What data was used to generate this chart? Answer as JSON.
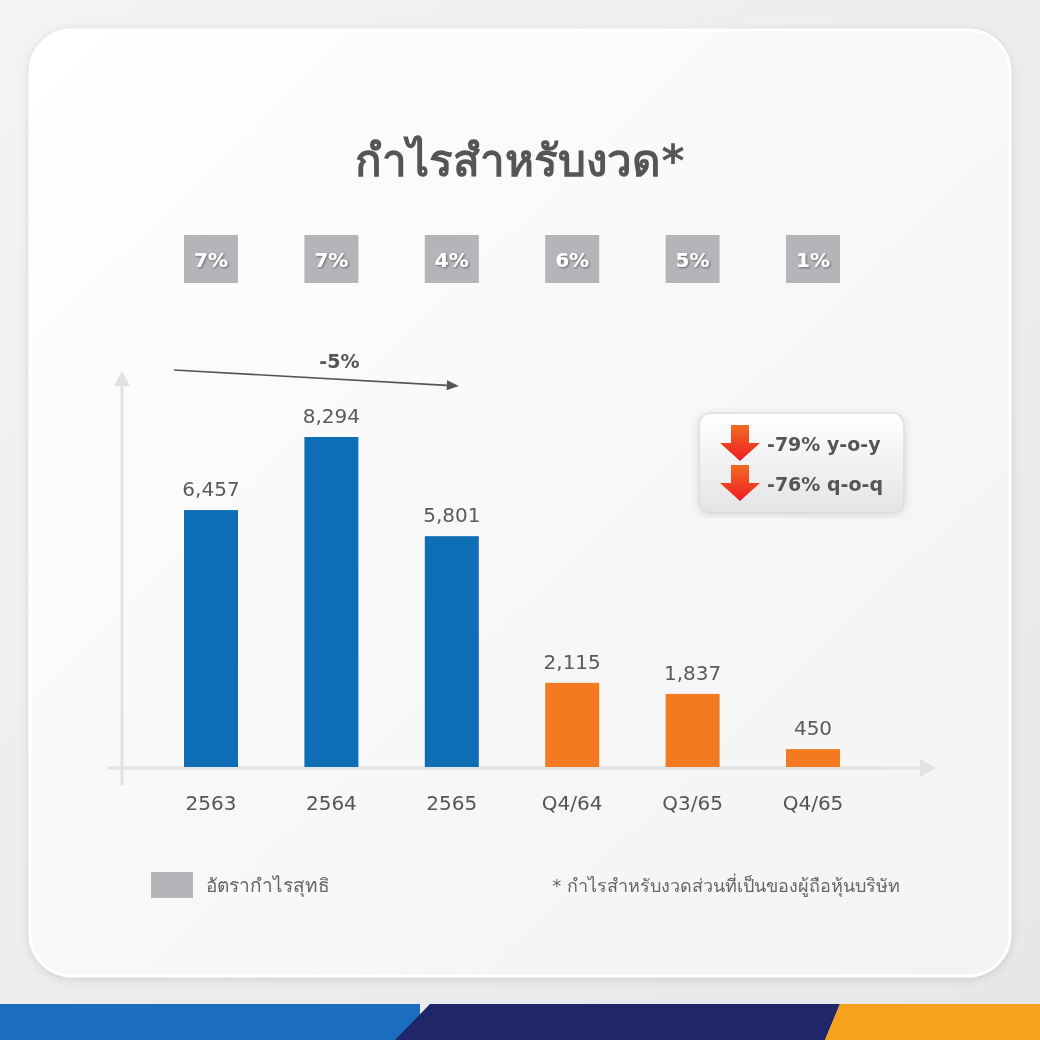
{
  "chart_data": [
    {
      "type": "bar",
      "title": "กำไรสำหรับงวด*",
      "categories": [
        "2563",
        "2564",
        "2565",
        "Q4/64",
        "Q3/65",
        "Q4/65"
      ],
      "series": [
        {
          "type": "bar",
          "values": [
            6457,
            8294,
            5801,
            2115,
            1837,
            450
          ],
          "value_labels": [
            "6,457",
            "8,294",
            "5,801",
            "2,115",
            "1,837",
            "450"
          ],
          "colors": [
            "#0d6db5",
            "#0d6db5",
            "#0d6db5",
            "#f47a22",
            "#f47a22",
            "#f47a22"
          ]
        }
      ],
      "annotations": [
        "-5%",
        "-79% y-o-y",
        "-76% q-o-q",
        "* กำไรสำหรับงวดส่วนที่เป็นของผู้ถือหุ้นบริษัท"
      ]
    },
    {
      "type": "other",
      "series": [
        {
          "name": "อัตรากำไรสุทธิ",
          "color": "#b4b5b8",
          "values": [
            7,
            7,
            4,
            6,
            5,
            1
          ],
          "value_labels": [
            "7%",
            "7%",
            "4%",
            "6%",
            "5%",
            "1%"
          ]
        }
      ],
      "legend": "bottom left"
    }
  ]
}
